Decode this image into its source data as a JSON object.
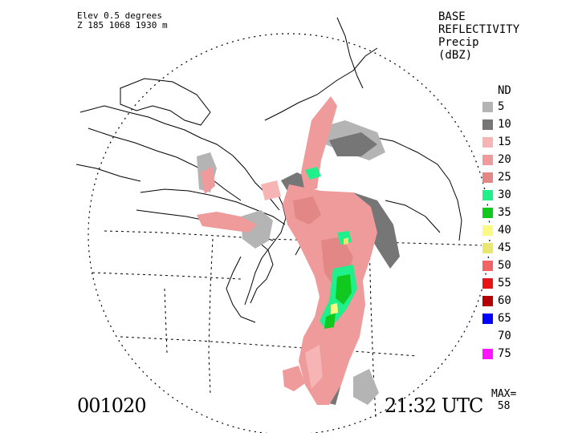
{
  "header": {
    "elevation": "Elev 0.5 degrees",
    "site_info": "Z 185 1068 1930 m"
  },
  "product": {
    "line1": "BASE",
    "line2": "REFLECTIVITY",
    "line3": "Precip",
    "line4": "(dBZ)"
  },
  "legend": {
    "nd_label": "ND",
    "items": [
      {
        "label": "5",
        "color": "#b4b4b4"
      },
      {
        "label": "10",
        "color": "#767676"
      },
      {
        "label": "15",
        "color": "#f6b4b4"
      },
      {
        "label": "20",
        "color": "#ef9b9b"
      },
      {
        "label": "25",
        "color": "#e38686"
      },
      {
        "label": "30",
        "color": "#20f08c"
      },
      {
        "label": "35",
        "color": "#10c81e"
      },
      {
        "label": "40",
        "color": "#fafa82"
      },
      {
        "label": "45",
        "color": "#e8e870"
      },
      {
        "label": "50",
        "color": "#f06464"
      },
      {
        "label": "55",
        "color": "#e61414"
      },
      {
        "label": "60",
        "color": "#b40000"
      },
      {
        "label": "65",
        "color": "#0000ff"
      },
      {
        "label": "70",
        "color": "#ffffff"
      },
      {
        "label": "75",
        "color": "#ff14ff"
      }
    ]
  },
  "footer": {
    "date": "001020",
    "time": "21:32 UTC",
    "max_label": "MAX=",
    "max_value": "58"
  }
}
